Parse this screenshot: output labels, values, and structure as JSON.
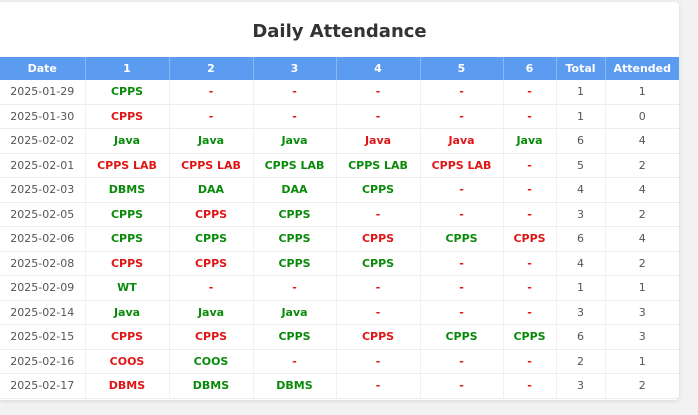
{
  "title": "Daily Attendance",
  "colors": {
    "header_bg": "#5b9bf0",
    "present": "#0a8a0a",
    "absent": "#e01515"
  },
  "columns": [
    "Date",
    "1",
    "2",
    "3",
    "4",
    "5",
    "6",
    "Total",
    "Attended"
  ],
  "rows": [
    {
      "date": "2025-01-29",
      "periods": [
        {
          "t": "CPPS",
          "s": "present"
        },
        {
          "t": "-",
          "s": "absent"
        },
        {
          "t": "-",
          "s": "absent"
        },
        {
          "t": "-",
          "s": "absent"
        },
        {
          "t": "-",
          "s": "absent"
        },
        {
          "t": "-",
          "s": "absent"
        }
      ],
      "total": "1",
      "attended": "1"
    },
    {
      "date": "2025-01-30",
      "periods": [
        {
          "t": "CPPS",
          "s": "absent"
        },
        {
          "t": "-",
          "s": "absent"
        },
        {
          "t": "-",
          "s": "absent"
        },
        {
          "t": "-",
          "s": "absent"
        },
        {
          "t": "-",
          "s": "absent"
        },
        {
          "t": "-",
          "s": "absent"
        }
      ],
      "total": "1",
      "attended": "0"
    },
    {
      "date": "2025-02-02",
      "periods": [
        {
          "t": "Java",
          "s": "present"
        },
        {
          "t": "Java",
          "s": "present"
        },
        {
          "t": "Java",
          "s": "present"
        },
        {
          "t": "Java",
          "s": "absent"
        },
        {
          "t": "Java",
          "s": "absent"
        },
        {
          "t": "Java",
          "s": "present"
        }
      ],
      "total": "6",
      "attended": "4"
    },
    {
      "date": "2025-02-01",
      "periods": [
        {
          "t": "CPPS LAB",
          "s": "absent"
        },
        {
          "t": "CPPS LAB",
          "s": "absent"
        },
        {
          "t": "CPPS LAB",
          "s": "present"
        },
        {
          "t": "CPPS LAB",
          "s": "present"
        },
        {
          "t": "CPPS LAB",
          "s": "absent"
        },
        {
          "t": "-",
          "s": "absent"
        }
      ],
      "total": "5",
      "attended": "2"
    },
    {
      "date": "2025-02-03",
      "periods": [
        {
          "t": "DBMS",
          "s": "present"
        },
        {
          "t": "DAA",
          "s": "present"
        },
        {
          "t": "DAA",
          "s": "present"
        },
        {
          "t": "CPPS",
          "s": "present"
        },
        {
          "t": "-",
          "s": "absent"
        },
        {
          "t": "-",
          "s": "absent"
        }
      ],
      "total": "4",
      "attended": "4"
    },
    {
      "date": "2025-02-05",
      "periods": [
        {
          "t": "CPPS",
          "s": "present"
        },
        {
          "t": "CPPS",
          "s": "absent"
        },
        {
          "t": "CPPS",
          "s": "present"
        },
        {
          "t": "-",
          "s": "absent"
        },
        {
          "t": "-",
          "s": "absent"
        },
        {
          "t": "-",
          "s": "absent"
        }
      ],
      "total": "3",
      "attended": "2"
    },
    {
      "date": "2025-02-06",
      "periods": [
        {
          "t": "CPPS",
          "s": "present"
        },
        {
          "t": "CPPS",
          "s": "present"
        },
        {
          "t": "CPPS",
          "s": "present"
        },
        {
          "t": "CPPS",
          "s": "absent"
        },
        {
          "t": "CPPS",
          "s": "present"
        },
        {
          "t": "CPPS",
          "s": "absent"
        }
      ],
      "total": "6",
      "attended": "4"
    },
    {
      "date": "2025-02-08",
      "periods": [
        {
          "t": "CPPS",
          "s": "absent"
        },
        {
          "t": "CPPS",
          "s": "absent"
        },
        {
          "t": "CPPS",
          "s": "present"
        },
        {
          "t": "CPPS",
          "s": "present"
        },
        {
          "t": "-",
          "s": "absent"
        },
        {
          "t": "-",
          "s": "absent"
        }
      ],
      "total": "4",
      "attended": "2"
    },
    {
      "date": "2025-02-09",
      "periods": [
        {
          "t": "WT",
          "s": "present"
        },
        {
          "t": "-",
          "s": "absent"
        },
        {
          "t": "-",
          "s": "absent"
        },
        {
          "t": "-",
          "s": "absent"
        },
        {
          "t": "-",
          "s": "absent"
        },
        {
          "t": "-",
          "s": "absent"
        }
      ],
      "total": "1",
      "attended": "1"
    },
    {
      "date": "2025-02-14",
      "periods": [
        {
          "t": "Java",
          "s": "present"
        },
        {
          "t": "Java",
          "s": "present"
        },
        {
          "t": "Java",
          "s": "present"
        },
        {
          "t": "-",
          "s": "absent"
        },
        {
          "t": "-",
          "s": "absent"
        },
        {
          "t": "-",
          "s": "absent"
        }
      ],
      "total": "3",
      "attended": "3"
    },
    {
      "date": "2025-02-15",
      "periods": [
        {
          "t": "CPPS",
          "s": "absent"
        },
        {
          "t": "CPPS",
          "s": "absent"
        },
        {
          "t": "CPPS",
          "s": "present"
        },
        {
          "t": "CPPS",
          "s": "absent"
        },
        {
          "t": "CPPS",
          "s": "present"
        },
        {
          "t": "CPPS",
          "s": "present"
        }
      ],
      "total": "6",
      "attended": "3"
    },
    {
      "date": "2025-02-16",
      "periods": [
        {
          "t": "COOS",
          "s": "absent"
        },
        {
          "t": "COOS",
          "s": "present"
        },
        {
          "t": "-",
          "s": "absent"
        },
        {
          "t": "-",
          "s": "absent"
        },
        {
          "t": "-",
          "s": "absent"
        },
        {
          "t": "-",
          "s": "absent"
        }
      ],
      "total": "2",
      "attended": "1"
    },
    {
      "date": "2025-02-17",
      "periods": [
        {
          "t": "DBMS",
          "s": "absent"
        },
        {
          "t": "DBMS",
          "s": "present"
        },
        {
          "t": "DBMS",
          "s": "present"
        },
        {
          "t": "-",
          "s": "absent"
        },
        {
          "t": "-",
          "s": "absent"
        },
        {
          "t": "-",
          "s": "absent"
        }
      ],
      "total": "3",
      "attended": "2"
    }
  ]
}
